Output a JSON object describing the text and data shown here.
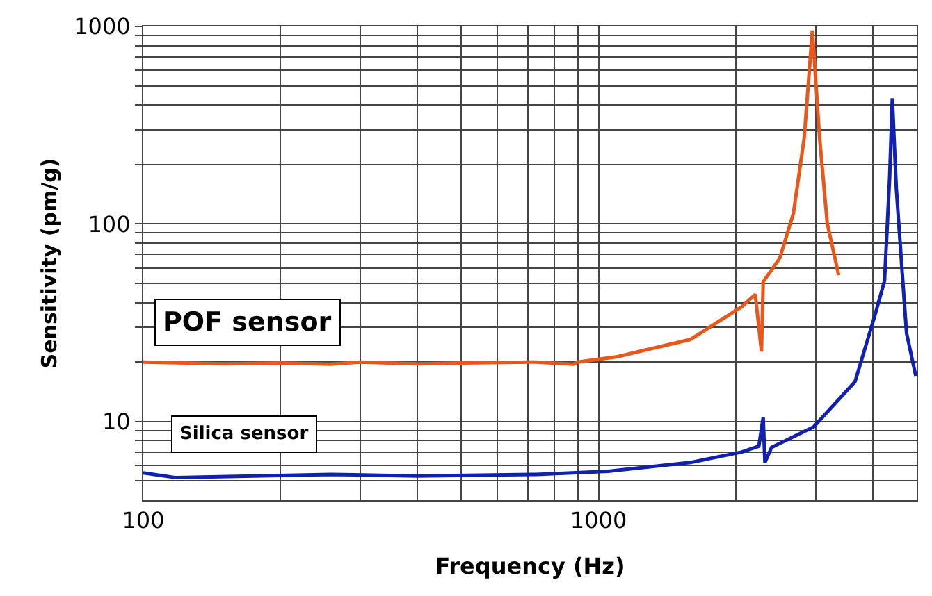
{
  "chart_data": {
    "type": "line",
    "xlabel": "Frequency (Hz)",
    "ylabel": "Sensitivity (pm/g)",
    "log": "xy",
    "grid": true,
    "legend": false,
    "marker": "none",
    "line_style": "solid",
    "xlim": [
      100,
      5000
    ],
    "ylim": [
      4,
      1000
    ],
    "xticks": [
      100,
      {
        "value": 200,
        "label": null
      },
      {
        "value": 300,
        "label": null
      },
      {
        "value": 400,
        "label": null
      },
      {
        "value": 500,
        "label": null
      },
      {
        "value": 600,
        "label": null
      },
      {
        "value": 700,
        "label": null
      },
      {
        "value": 800,
        "label": null
      },
      {
        "value": 900,
        "label": null
      },
      1000,
      {
        "value": 2000,
        "label": null
      },
      {
        "value": 3000,
        "label": null
      },
      {
        "value": 4000,
        "label": null
      },
      {
        "value": 5000,
        "label": null
      }
    ],
    "yticks": [
      {
        "value": 5,
        "label": null
      },
      {
        "value": 6,
        "label": null
      },
      {
        "value": 7,
        "label": null
      },
      {
        "value": 8,
        "label": null
      },
      {
        "value": 9,
        "label": null
      },
      10,
      {
        "value": 20,
        "label": null
      },
      {
        "value": 30,
        "label": null
      },
      {
        "value": 40,
        "label": null
      },
      {
        "value": 50,
        "label": null
      },
      {
        "value": 60,
        "label": null
      },
      {
        "value": 70,
        "label": null
      },
      {
        "value": 80,
        "label": null
      },
      {
        "value": 90,
        "label": null
      },
      100,
      {
        "value": 200,
        "label": null
      },
      {
        "value": 300,
        "label": null
      },
      {
        "value": 400,
        "label": null
      },
      {
        "value": 500,
        "label": null
      },
      {
        "value": 600,
        "label": null
      },
      {
        "value": 700,
        "label": null
      },
      {
        "value": 800,
        "label": null
      },
      {
        "value": 900,
        "label": null
      },
      1000
    ],
    "series": [
      {
        "name": "POF sensor",
        "color": "#e8581a",
        "x": [
          100,
          150,
          200,
          258,
          300,
          400,
          500,
          729,
          880,
          900,
          1100,
          1590,
          2060,
          2210,
          2280,
          2300,
          2500,
          2680,
          2830,
          2950,
          3060,
          3180,
          3370
        ],
        "values": [
          20,
          19.6,
          19.8,
          19.5,
          20,
          19.6,
          19.8,
          20,
          19.5,
          20,
          21.3,
          26,
          38,
          44,
          22.6,
          51,
          67,
          113,
          272,
          953,
          272,
          101,
          55
        ]
      },
      {
        "name": "Silica sensor",
        "color": "#1020b0",
        "x": [
          100,
          118,
          258,
          400,
          729,
          1050,
          1590,
          2060,
          2250,
          2300,
          2320,
          2400,
          2970,
          3660,
          4040,
          4250,
          4360,
          4420,
          4510,
          4660,
          4750,
          4980
        ],
        "values": [
          5.5,
          5.2,
          5.4,
          5.3,
          5.4,
          5.6,
          6.2,
          7,
          7.5,
          10.5,
          6.2,
          7.4,
          9.4,
          15.9,
          34,
          51.6,
          171,
          433,
          152,
          51.6,
          28,
          16.9
        ]
      }
    ]
  }
}
